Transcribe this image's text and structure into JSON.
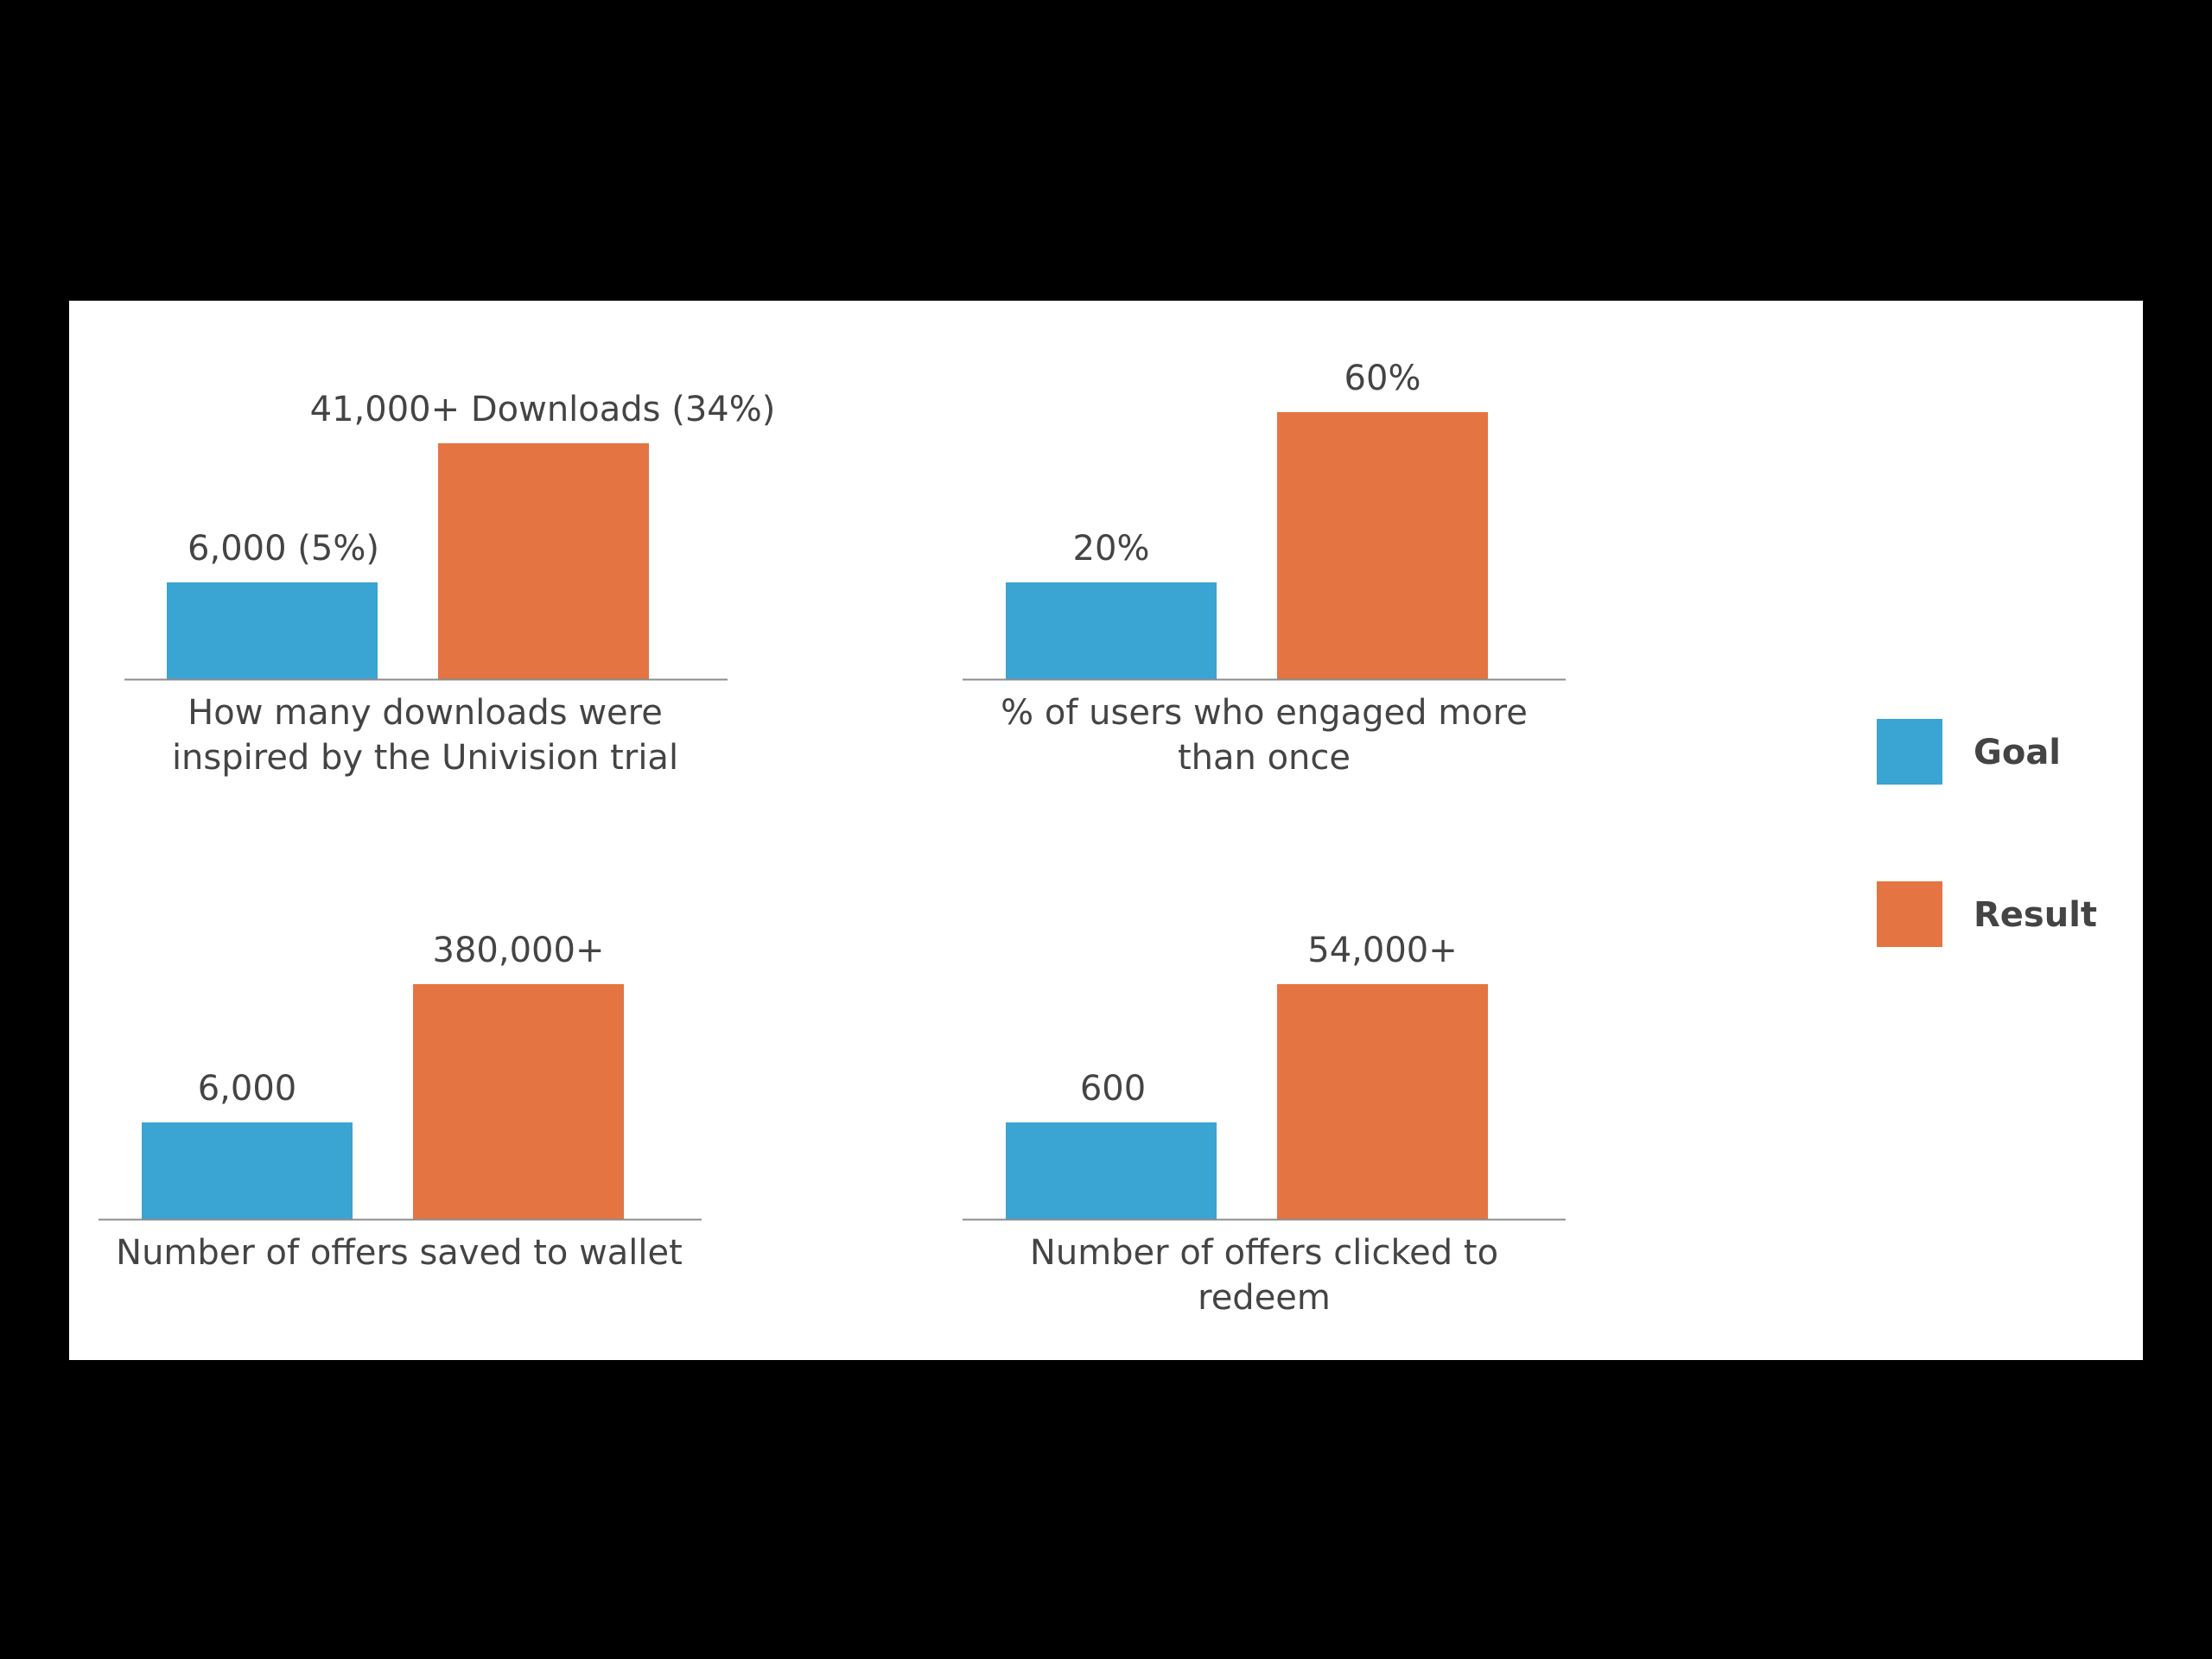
{
  "colors": {
    "goal": "#3AA4D3",
    "result": "#E47442",
    "axis": "#8C8C8C",
    "text": "#444444",
    "background": "#000000",
    "panel": "#ffffff"
  },
  "legend": [
    {
      "label": "Goal",
      "color": "#3AA4D3"
    },
    {
      "label": "Result",
      "color": "#E47442"
    }
  ],
  "chart_data": [
    {
      "type": "bar",
      "categories": [
        "Goal",
        "Result"
      ],
      "values": [
        6000,
        41000
      ],
      "value_labels": [
        "6,000 (5%)",
        "41,000+ Downloads (34%)"
      ],
      "caption": [
        "How many downloads were",
        "inspired by the Univision trial"
      ]
    },
    {
      "type": "bar",
      "categories": [
        "Goal",
        "Result"
      ],
      "values": [
        20,
        60
      ],
      "value_labels": [
        "20%",
        "60%"
      ],
      "caption": [
        "% of users who engaged more",
        "than once"
      ]
    },
    {
      "type": "bar",
      "categories": [
        "Goal",
        "Result"
      ],
      "values": [
        6000,
        380000
      ],
      "value_labels": [
        "6,000",
        "380,000+"
      ],
      "caption": [
        "Number of offers saved to wallet"
      ]
    },
    {
      "type": "bar",
      "categories": [
        "Goal",
        "Result"
      ],
      "values": [
        600,
        54000
      ],
      "value_labels": [
        "600",
        "54,000+"
      ],
      "caption": [
        "Number of offers clicked to",
        "redeem"
      ]
    }
  ]
}
